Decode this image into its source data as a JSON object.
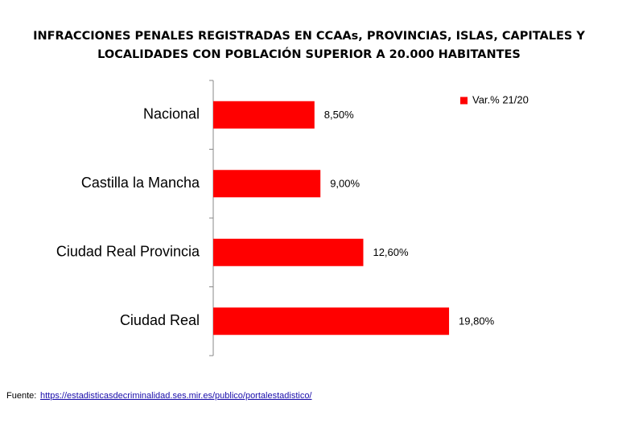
{
  "chart_data": {
    "type": "hbar",
    "title": [
      "INFRACCIONES PENALES REGISTRADAS EN CCAAs, PROVINCIAS, ISLAS, CAPITALES Y",
      "LOCALIDADES CON POBLACIÓN SUPERIOR A 20.000 HABITANTES"
    ],
    "categories": [
      "Nacional",
      "Castilla la Mancha",
      "Ciudad Real Provincia",
      "Ciudad Real"
    ],
    "series": [
      {
        "name": "Var.% 21/20",
        "color": "#ff0000",
        "values": [
          8.5,
          9.0,
          12.6,
          19.8
        ],
        "value_labels": [
          "8,50%",
          "9,00%",
          "12,60%",
          "19,80%"
        ]
      }
    ],
    "legend": "top-right"
  },
  "footer": {
    "label": "Fuente:",
    "link": "https://estadisticasdecriminalidad.ses.mir.es/publico/portalestadistico/"
  }
}
